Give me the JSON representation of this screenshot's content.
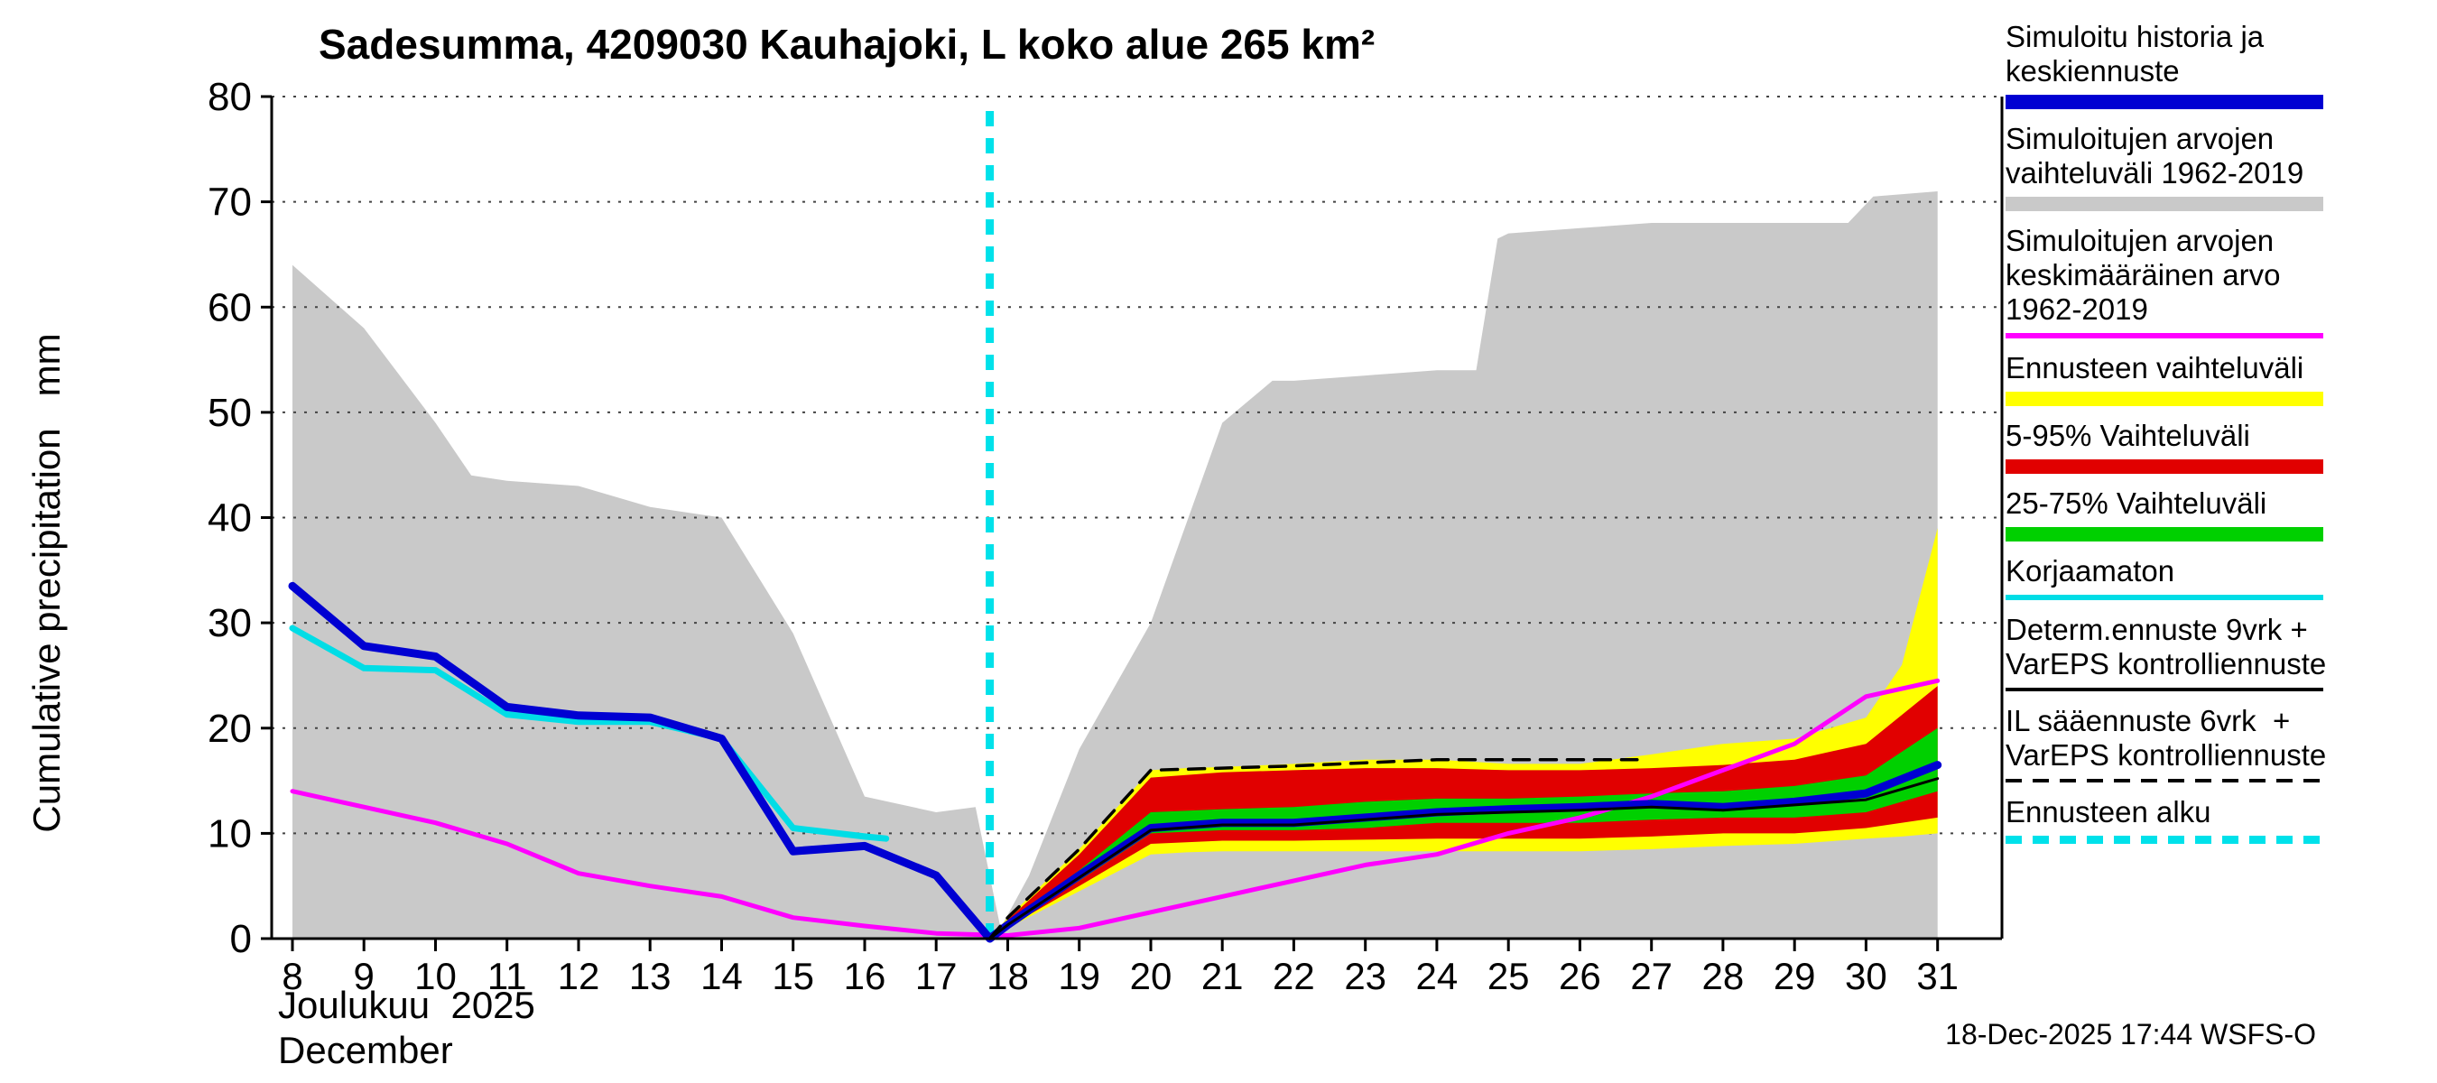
{
  "title": "Sadesumma, 4209030 Kauhajoki, L koko alue 265 km²",
  "footer": "18-Dec-2025 17:44 WSFS-O",
  "axis": {
    "ylabel": "Cumulative precipitation   mm",
    "xlabel_fi": "Joulukuu  2025",
    "xlabel_en": "December"
  },
  "chart_data": {
    "type": "line",
    "title": "Sadesumma, 4209030 Kauhajoki, L koko alue 265 km²",
    "ylabel": "Cumulative precipitation mm",
    "xlabel": "Joulukuu 2025 / December",
    "ylim": [
      0,
      80
    ],
    "xlim": [
      7.71,
      31.9
    ],
    "y_ticks": [
      0,
      10,
      20,
      30,
      40,
      50,
      60,
      70,
      80
    ],
    "x_ticks": [
      8,
      9,
      10,
      11,
      12,
      13,
      14,
      15,
      16,
      17,
      18,
      19,
      20,
      21,
      22,
      23,
      24,
      25,
      26,
      27,
      28,
      29,
      30,
      31
    ],
    "grid": "horizontal-dotted",
    "forecast_start": {
      "x": 17.75,
      "color": "#00e1ea",
      "label": "Ennusteen alku"
    },
    "bands": [
      {
        "name": "history-range-1962-2019",
        "color": "#c9c9c9",
        "x": [
          8,
          9,
          10,
          10.5,
          11,
          12,
          13,
          14,
          15,
          16,
          17,
          17.55,
          17.9,
          18.3,
          19,
          20,
          21,
          21.7,
          22,
          23,
          24,
          24.55,
          24.85,
          25,
          26,
          27,
          28,
          29,
          29.75,
          30.1,
          31
        ],
        "upper": [
          64,
          58,
          49,
          44,
          43.5,
          43,
          41,
          40,
          29,
          13.5,
          12,
          12.5,
          1,
          6,
          18,
          30,
          49,
          53,
          53,
          53.5,
          54,
          54,
          66.5,
          67,
          67.5,
          68,
          68,
          68,
          68,
          70.5,
          71
        ],
        "lower": 0
      },
      {
        "name": "forecast-range-yellow",
        "color": "#ffff00",
        "x": [
          17.75,
          18,
          19,
          20,
          20.5,
          21,
          22,
          23,
          24,
          25,
          26,
          27,
          28,
          29,
          30,
          30.5,
          31
        ],
        "upper": [
          0,
          2,
          8.5,
          16,
          16.2,
          16.3,
          16.6,
          17,
          17,
          16.6,
          16.6,
          17.5,
          18.5,
          19,
          21,
          26,
          39
        ],
        "lower": [
          0,
          1,
          4.5,
          8,
          8.2,
          8.3,
          8.3,
          8.3,
          8.3,
          8.3,
          8.3,
          8.5,
          8.8,
          9,
          9.5,
          9.7,
          10
        ]
      },
      {
        "name": "range-5-95",
        "color": "#e10000",
        "x": [
          17.75,
          18,
          19,
          20,
          21,
          22,
          23,
          24,
          25,
          26,
          27,
          28,
          29,
          30,
          31
        ],
        "upper": [
          0,
          1.8,
          8,
          15.3,
          15.8,
          16,
          16.2,
          16.2,
          16,
          16,
          16.2,
          16.5,
          17,
          18.5,
          24
        ],
        "lower": [
          0,
          1.1,
          5,
          9,
          9.3,
          9.3,
          9.4,
          9.5,
          9.5,
          9.5,
          9.7,
          10,
          10,
          10.5,
          11.5
        ]
      },
      {
        "name": "range-25-75",
        "color": "#00d000",
        "x": [
          17.75,
          18,
          19,
          20,
          21,
          22,
          23,
          24,
          25,
          26,
          27,
          28,
          29,
          30,
          31
        ],
        "upper": [
          0,
          1.5,
          6.5,
          12,
          12.3,
          12.5,
          13,
          13.3,
          13.3,
          13.5,
          13.8,
          14,
          14.5,
          15.5,
          20
        ],
        "lower": [
          0,
          1.2,
          5.5,
          10,
          10.3,
          10.3,
          10.5,
          11,
          11,
          11,
          11.3,
          11.5,
          11.5,
          12,
          14
        ]
      }
    ],
    "lines": [
      {
        "name": "simulated-mean-1962-2019",
        "label": "Simuloitujen arvojen keskimääräinen arvo 1962-2019",
        "color": "#ff00ff",
        "width": 5,
        "x": [
          8,
          9,
          10,
          11,
          12,
          13,
          14,
          15,
          16,
          17,
          18,
          19,
          20,
          21,
          22,
          23,
          24,
          25,
          26,
          27,
          28,
          29,
          30,
          31
        ],
        "y": [
          14,
          12.5,
          11,
          9,
          6.2,
          5,
          4,
          2,
          1.2,
          0.5,
          0.3,
          1,
          2.5,
          4,
          5.5,
          7,
          8,
          10,
          11.5,
          13.5,
          16,
          18.5,
          23,
          24.5
        ]
      },
      {
        "name": "uncorrected",
        "label": "Korjaamaton",
        "color": "#00dde6",
        "width": 7,
        "x": [
          8,
          9,
          10,
          11,
          12,
          13,
          14,
          15,
          16,
          16.3
        ],
        "y": [
          29.5,
          25.7,
          25.5,
          21.3,
          20.6,
          20.6,
          19,
          10.5,
          9.7,
          9.5
        ]
      },
      {
        "name": "simulated-history-and-mean-forecast",
        "label": "Simuloitu historia ja keskiennuste",
        "color": "#0000d2",
        "width": 9,
        "x": [
          8,
          9,
          10,
          11,
          12,
          13,
          14,
          15,
          16,
          17,
          17.75,
          18,
          19,
          20,
          21,
          22,
          23,
          24,
          25,
          26,
          27,
          28,
          29,
          30,
          31
        ],
        "y": [
          33.5,
          27.8,
          26.8,
          22,
          21.2,
          21,
          19,
          8.3,
          8.8,
          6,
          0,
          1.3,
          6,
          10.5,
          11,
          11,
          11.5,
          12,
          12.3,
          12.5,
          12.8,
          12.5,
          13,
          13.8,
          16.5
        ]
      },
      {
        "name": "deterministic-forecast",
        "label": "Determ.ennuste 9vrk + VarEPS kontrolliennuste",
        "color": "#000000",
        "width": 3,
        "x": [
          17.75,
          18,
          19,
          20,
          21,
          22,
          23,
          24,
          25,
          26,
          27,
          28,
          29,
          30,
          31
        ],
        "y": [
          0,
          1.3,
          5.8,
          10.3,
          10.8,
          10.8,
          11.3,
          11.8,
          12,
          12.2,
          12.5,
          12.2,
          12.7,
          13.2,
          15.2
        ]
      },
      {
        "name": "il-weather-forecast",
        "label": "IL sääennuste 6vrk + VarEPS kontrolliennuste",
        "color": "#000000",
        "width": 3.5,
        "dash": "18 12",
        "x": [
          17.75,
          18,
          19,
          20,
          21,
          22,
          23,
          24,
          25,
          26,
          26.8
        ],
        "y": [
          0,
          2,
          8.5,
          16,
          16.2,
          16.4,
          16.7,
          17,
          17,
          17,
          17
        ]
      }
    ]
  },
  "legend": {
    "items": [
      {
        "id": "sim-history-mean-forecast",
        "lines": [
          "Simuloitu historia ja",
          "keskiennuste"
        ],
        "sample": {
          "color": "#0000d2",
          "thickness": 16,
          "dash": false
        }
      },
      {
        "id": "sim-range",
        "lines": [
          "Simuloitujen arvojen",
          "vaihteluväli 1962-2019"
        ],
        "sample": {
          "color": "#c9c9c9",
          "thickness": 16,
          "dash": false
        }
      },
      {
        "id": "sim-mean",
        "lines": [
          "Simuloitujen arvojen",
          "keskimääräinen arvo",
          "1962-2019"
        ],
        "sample": {
          "color": "#ff00ff",
          "thickness": 6,
          "dash": false
        }
      },
      {
        "id": "forecast-range",
        "lines": [
          "Ennusteen vaihteluväli"
        ],
        "sample": {
          "color": "#ffff00",
          "thickness": 16,
          "dash": false
        }
      },
      {
        "id": "range-5-95",
        "lines": [
          "5-95% Vaihteluväli"
        ],
        "sample": {
          "color": "#e10000",
          "thickness": 16,
          "dash": false
        }
      },
      {
        "id": "range-25-75",
        "lines": [
          "25-75% Vaihteluväli"
        ],
        "sample": {
          "color": "#00d000",
          "thickness": 16,
          "dash": false
        }
      },
      {
        "id": "uncorrected",
        "lines": [
          "Korjaamaton"
        ],
        "sample": {
          "color": "#00dde6",
          "thickness": 6,
          "dash": false
        }
      },
      {
        "id": "determ-forecast",
        "lines": [
          "Determ.ennuste 9vrk +",
          "VarEPS kontrolliennuste"
        ],
        "sample": {
          "color": "#000000",
          "thickness": 4,
          "dash": false
        }
      },
      {
        "id": "il-forecast",
        "lines": [
          "IL sääennuste 6vrk  +",
          "VarEPS kontrolliennuste"
        ],
        "sample": {
          "color": "#000000",
          "thickness": 4,
          "dash": true
        }
      },
      {
        "id": "forecast-start",
        "lines": [
          "Ennusteen alku"
        ],
        "sample": {
          "color": "#00e1ea",
          "thickness": 9,
          "dash": true
        }
      }
    ]
  }
}
